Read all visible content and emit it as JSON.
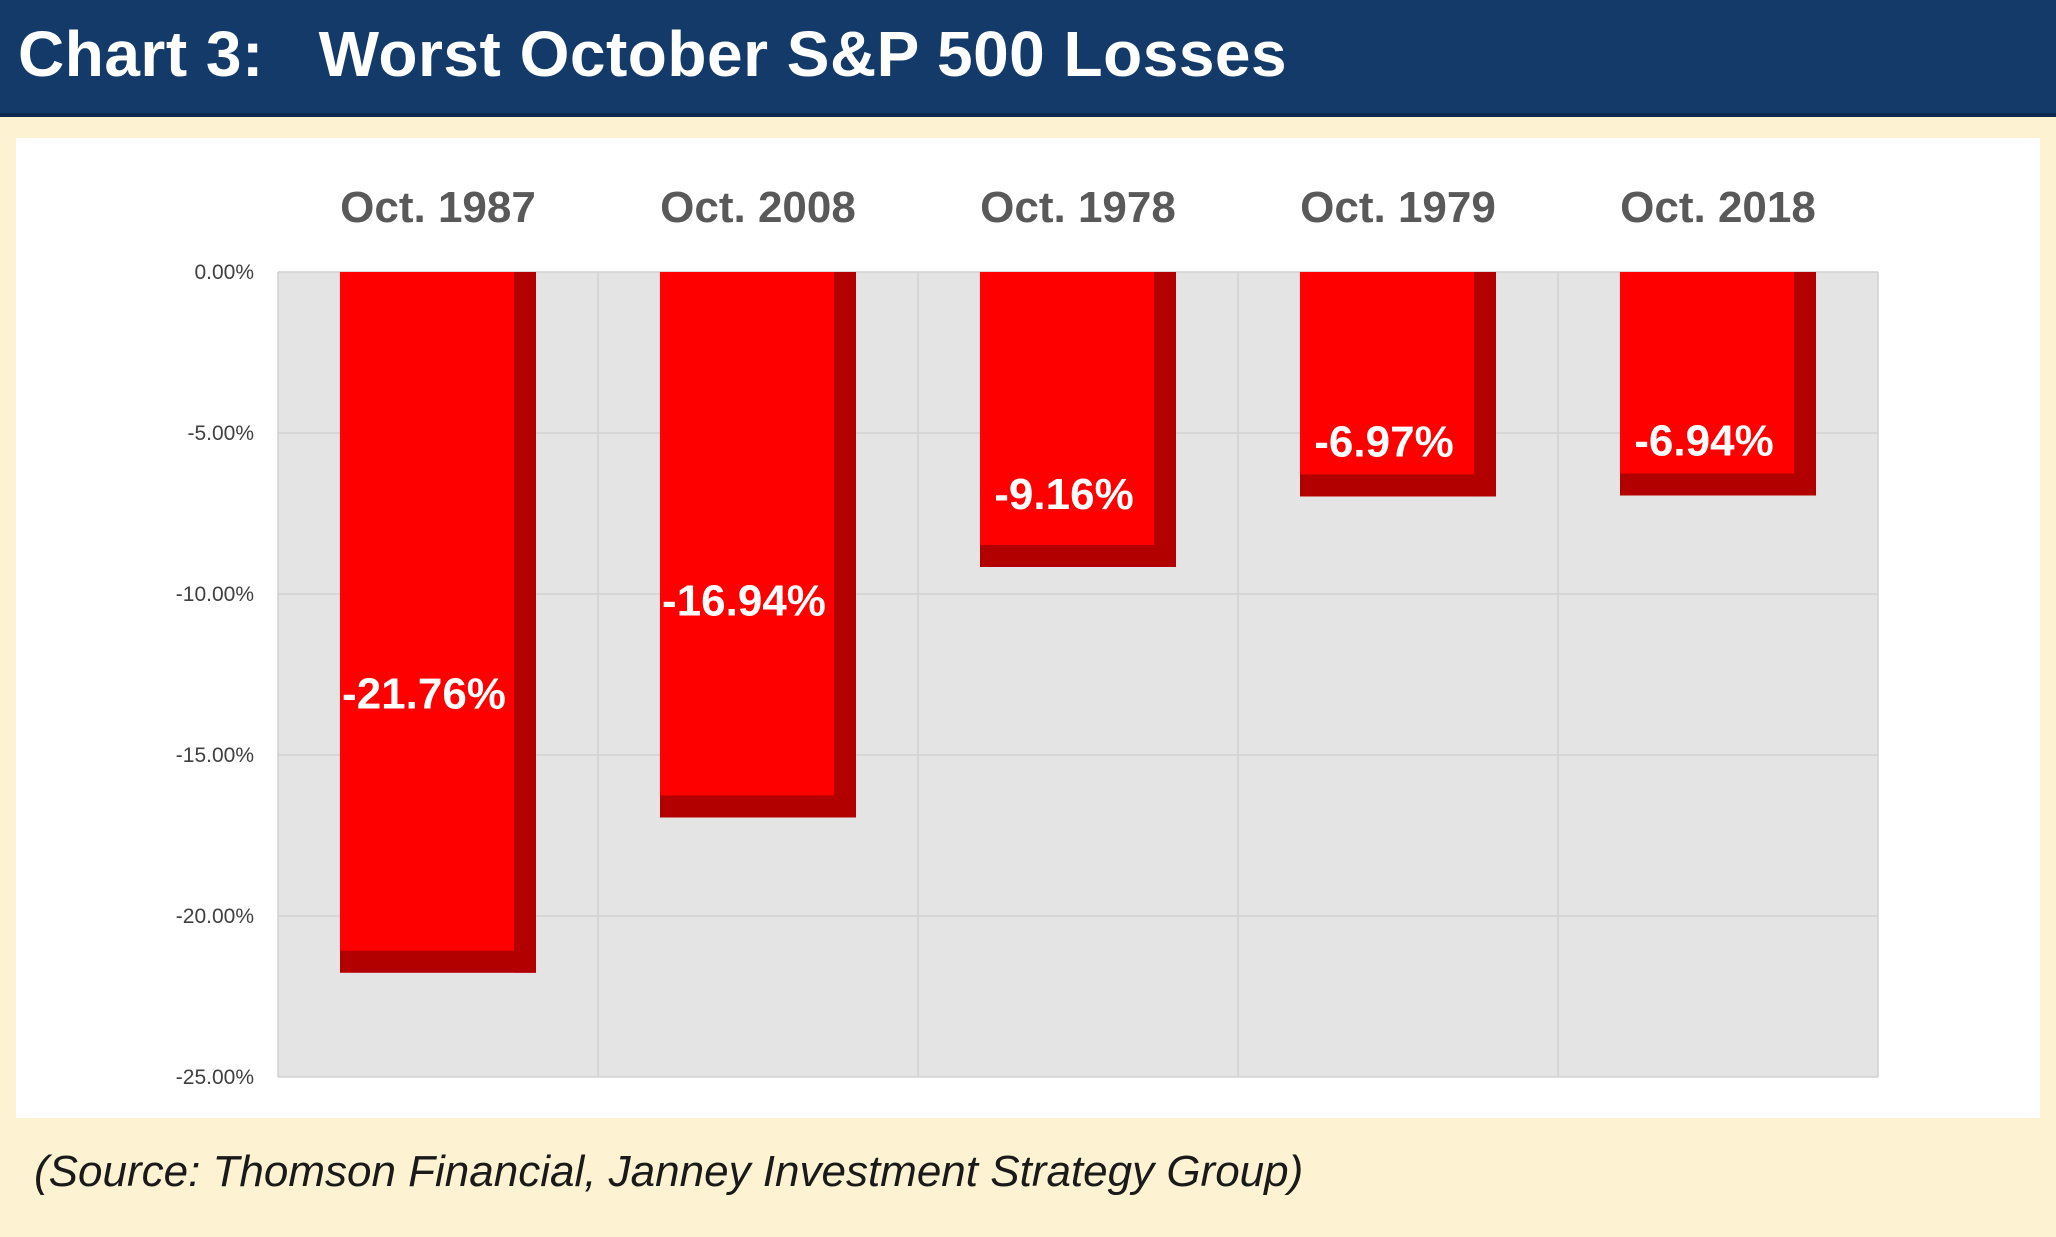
{
  "header": {
    "title": "Chart 3:   Worst October S&P 500 Losses"
  },
  "colors": {
    "header_bg": "#133a68",
    "page_bg": "#fdf3d3",
    "plot_bg": "#e4e4e4",
    "bar_fill": "#ff0000",
    "bar_shade": "#b20000",
    "category_label": "#595959",
    "data_label": "#ffffff"
  },
  "chart_data": {
    "type": "bar",
    "title": "Worst October S&P 500 Losses",
    "categories": [
      "Oct. 1987",
      "Oct. 2008",
      "Oct. 1978",
      "Oct. 1979",
      "Oct. 2018"
    ],
    "values": [
      -21.76,
      -16.94,
      -9.16,
      -6.97,
      -6.94
    ],
    "data_labels": [
      "-21.76%",
      "-16.94%",
      "-9.16%",
      "-6.97%",
      "-6.94%"
    ],
    "ylim": [
      -25,
      0
    ],
    "yticks": [
      0,
      -5,
      -10,
      -15,
      -20,
      -25
    ],
    "ytick_labels": [
      "0.00%",
      "-5.00%",
      "-10.00%",
      "-15.00%",
      "-20.00%",
      "-25.00%"
    ],
    "category_axis_position": "top",
    "xlabel": "",
    "ylabel": "",
    "grid": true,
    "legend": "none"
  },
  "source": "(Source: Thomson Financial, Janney Investment Strategy Group)"
}
